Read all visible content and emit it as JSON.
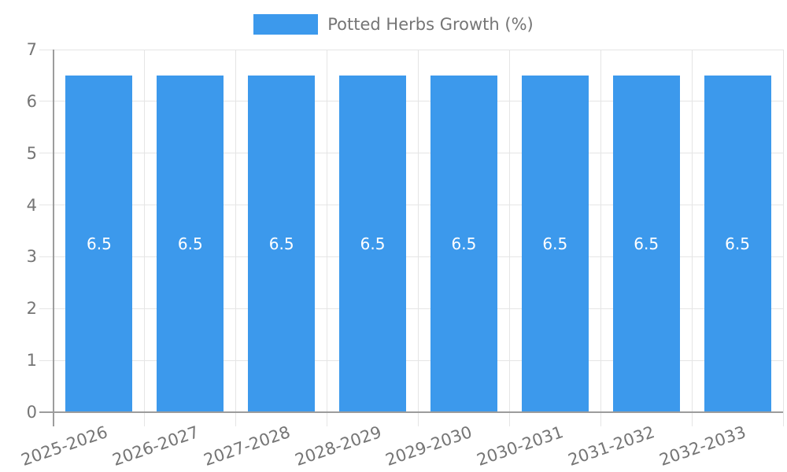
{
  "legend": {
    "label": "Potted Herbs Growth (%)"
  },
  "chart_data": {
    "type": "bar",
    "title": "",
    "categories": [
      "2025-2026",
      "2026-2027",
      "2027-2028",
      "2028-2029",
      "2029-2030",
      "2030-2031",
      "2031-2032",
      "2032-2033"
    ],
    "series": [
      {
        "name": "Potted Herbs Growth (%)",
        "values": [
          6.5,
          6.5,
          6.5,
          6.5,
          6.5,
          6.5,
          6.5,
          6.5
        ]
      }
    ],
    "value_labels": [
      "6.5",
      "6.5",
      "6.5",
      "6.5",
      "6.5",
      "6.5",
      "6.5",
      "6.5"
    ],
    "ylim": [
      0,
      7
    ],
    "yticks": [
      0,
      1,
      2,
      3,
      4,
      5,
      6,
      7
    ],
    "grid": true,
    "legend_position": "top",
    "x_label_rotation_deg": -19,
    "colors": {
      "bar": "#3C99EC",
      "grid": "#E5E5E5",
      "axis": "#9C9C9C",
      "tick_text": "#757575",
      "value_label": "#FFFFFF",
      "background": "#FFFFFF"
    }
  }
}
